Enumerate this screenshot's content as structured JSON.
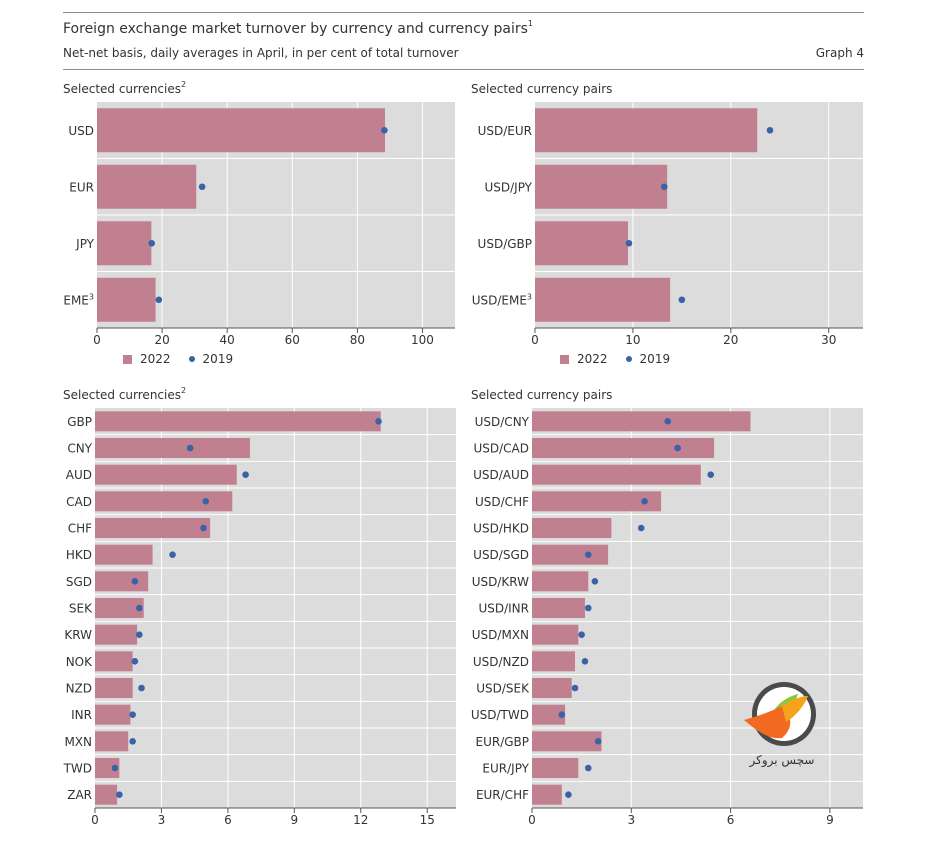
{
  "header": {
    "title": "Foreign exchange market turnover by currency and currency pairs",
    "title_note": "1",
    "subtitle": "Net-net basis, daily averages in April, in per cent of total turnover",
    "graph_number": "Graph 4"
  },
  "legend": {
    "series_2022": "2022",
    "series_2019": "2019"
  },
  "watermark": {
    "text": "سچس بروکر"
  },
  "colors": {
    "bar": "#c0808f",
    "dot": "#3a62a8",
    "plot_bg": "#dcdcdc"
  },
  "chart_data": [
    {
      "type": "bar",
      "orientation": "horizontal",
      "title": "Selected currencies",
      "title_note": "2",
      "categories": [
        "USD",
        "EUR",
        "JPY",
        "EME"
      ],
      "category_notes": [
        "",
        "",
        "",
        "3"
      ],
      "series": [
        {
          "name": "2022",
          "kind": "bar",
          "values": [
            88.5,
            30.5,
            16.7,
            18
          ]
        },
        {
          "name": "2019",
          "kind": "dot",
          "values": [
            88.3,
            32.3,
            16.8,
            19
          ]
        }
      ],
      "xlim": [
        0,
        110
      ],
      "xticks": [
        0,
        20,
        40,
        60,
        80,
        100
      ],
      "xtick_labels": [
        "0",
        "20",
        "40",
        "60",
        "80",
        "100"
      ],
      "xlabel": "",
      "ylabel": "",
      "grid": true,
      "legend_position": "bottom-left"
    },
    {
      "type": "bar",
      "orientation": "horizontal",
      "title": "Selected currency pairs",
      "title_note": "",
      "categories": [
        "USD/EUR",
        "USD/JPY",
        "USD/GBP",
        "USD/EME"
      ],
      "category_notes": [
        "",
        "",
        "",
        "3"
      ],
      "series": [
        {
          "name": "2022",
          "kind": "bar",
          "values": [
            22.7,
            13.5,
            9.5,
            13.8
          ]
        },
        {
          "name": "2019",
          "kind": "dot",
          "values": [
            24,
            13.2,
            9.6,
            15
          ]
        }
      ],
      "xlim": [
        0,
        33.5
      ],
      "xticks": [
        0,
        10,
        20,
        30
      ],
      "xtick_labels": [
        "0",
        "10",
        "20",
        "30"
      ],
      "xlabel": "",
      "ylabel": "",
      "grid": true,
      "legend_position": "bottom-left"
    },
    {
      "type": "bar",
      "orientation": "horizontal",
      "title": "Selected currencies",
      "title_note": "2",
      "categories": [
        "GBP",
        "CNY",
        "AUD",
        "CAD",
        "CHF",
        "HKD",
        "SGD",
        "SEK",
        "KRW",
        "NOK",
        "NZD",
        "INR",
        "MXN",
        "TWD",
        "ZAR"
      ],
      "category_notes": [
        "",
        "",
        "",
        "",
        "",
        "",
        "",
        "",
        "",
        "",
        "",
        "",
        "",
        "",
        ""
      ],
      "series": [
        {
          "name": "2022",
          "kind": "bar",
          "values": [
            12.9,
            7,
            6.4,
            6.2,
            5.2,
            2.6,
            2.4,
            2.2,
            1.9,
            1.7,
            1.7,
            1.6,
            1.5,
            1.1,
            1
          ]
        },
        {
          "name": "2019",
          "kind": "dot",
          "values": [
            12.8,
            4.3,
            6.8,
            5,
            4.9,
            3.5,
            1.8,
            2,
            2,
            1.8,
            2.1,
            1.7,
            1.7,
            0.9,
            1.1
          ]
        }
      ],
      "xlim": [
        0,
        16.3
      ],
      "xticks": [
        0,
        3,
        6,
        9,
        12,
        15
      ],
      "xtick_labels": [
        "0",
        "3",
        "6",
        "9",
        "12",
        "15"
      ],
      "xlabel": "",
      "ylabel": "",
      "grid": true,
      "legend_position": "none"
    },
    {
      "type": "bar",
      "orientation": "horizontal",
      "title": "Selected currency pairs",
      "title_note": "",
      "categories": [
        "USD/CNY",
        "USD/CAD",
        "USD/AUD",
        "USD/CHF",
        "USD/HKD",
        "USD/SGD",
        "USD/KRW",
        "USD/INR",
        "USD/MXN",
        "USD/NZD",
        "USD/SEK",
        "USD/TWD",
        "EUR/GBP",
        "EUR/JPY",
        "EUR/CHF"
      ],
      "category_notes": [
        "",
        "",
        "",
        "",
        "",
        "",
        "",
        "",
        "",
        "",
        "",
        "",
        "",
        "",
        ""
      ],
      "series": [
        {
          "name": "2022",
          "kind": "bar",
          "values": [
            6.6,
            5.5,
            5.1,
            3.9,
            2.4,
            2.3,
            1.7,
            1.6,
            1.4,
            1.3,
            1.2,
            1,
            2.1,
            1.4,
            0.9
          ]
        },
        {
          "name": "2019",
          "kind": "dot",
          "values": [
            4.1,
            4.4,
            5.4,
            3.4,
            3.3,
            1.7,
            1.9,
            1.7,
            1.5,
            1.6,
            1.3,
            0.9,
            2,
            1.7,
            1.1
          ]
        }
      ],
      "xlim": [
        0,
        10
      ],
      "xticks": [
        0,
        3,
        6,
        9
      ],
      "xtick_labels": [
        "0",
        "3",
        "6",
        "9"
      ],
      "xlabel": "",
      "ylabel": "",
      "grid": true,
      "legend_position": "none"
    }
  ]
}
